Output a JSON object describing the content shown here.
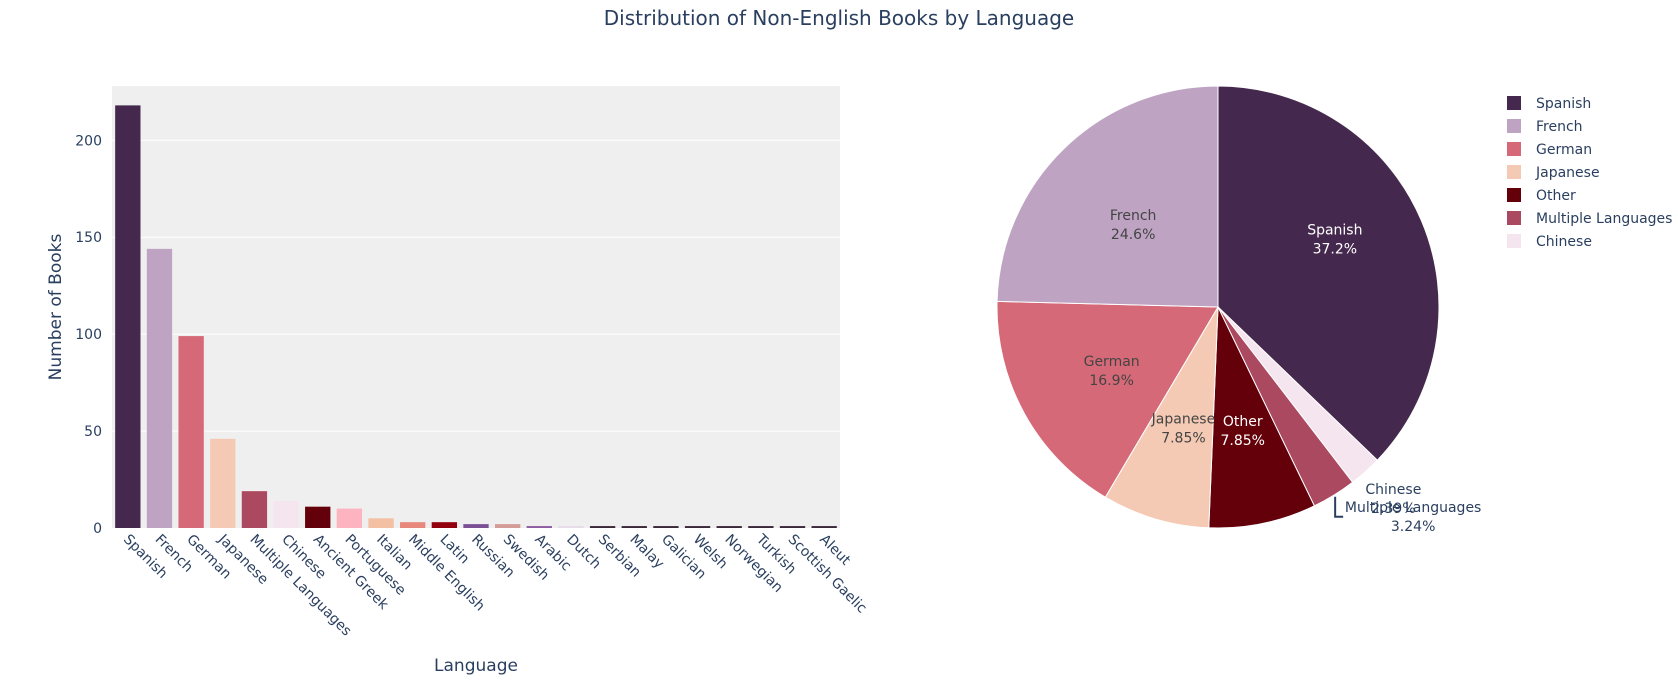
{
  "title": "Distribution of Non-English Books by Language",
  "chart_data": [
    {
      "type": "bar",
      "xlabel": "Language",
      "ylabel": "Number of Books",
      "ylim": [
        0,
        228
      ],
      "yticks": [
        0,
        50,
        100,
        150,
        200
      ],
      "grid": true,
      "categories": [
        "Spanish",
        "French",
        "German",
        "Japanese",
        "Multiple Languages",
        "Chinese",
        "Ancient Greek",
        "Portuguese",
        "Italian",
        "Middle English",
        "Latin",
        "Russian",
        "Swedish",
        "Arabic",
        "Dutch",
        "Serbian",
        "Malay",
        "Galician",
        "Welsh",
        "Norwegian",
        "Turkish",
        "Scottish Gaelic",
        "Aleut"
      ],
      "values": [
        218,
        144,
        99,
        46,
        19,
        14,
        11,
        10,
        5,
        3,
        3,
        2,
        2,
        1,
        1,
        1,
        1,
        1,
        1,
        1,
        1,
        1,
        1
      ],
      "colors": [
        "#45284d",
        "#bea3c3",
        "#d56978",
        "#f5cab4",
        "#aa495f",
        "#f5e5ef",
        "#640009",
        "#fdb4c0",
        "#f4c0a4",
        "#e8877c",
        "#92000e",
        "#7b5095",
        "#d49c97",
        "#8e5ca1",
        "#e8dbe8",
        "#3a2a3a",
        "#3a2a3a",
        "#3a2a3a",
        "#3a2a3a",
        "#3a2a3a",
        "#3a2a3a",
        "#3a2a3a",
        "#3a2a3a"
      ]
    },
    {
      "type": "pie",
      "legend_position": "top-right",
      "slices": [
        {
          "label": "Spanish",
          "percent": 37.2,
          "percent_label": "37.2%",
          "color": "#45284d",
          "text_color": "#ffffff"
        },
        {
          "label": "Chinese",
          "percent": 2.39,
          "percent_label": "2.39%",
          "color": "#f5e5ef",
          "text_color": "#2a3f5f"
        },
        {
          "label": "Multiple Languages",
          "percent": 3.24,
          "percent_label": "3.24%",
          "color": "#aa495f",
          "text_color": "#2a3f5f"
        },
        {
          "label": "Other",
          "percent": 7.85,
          "percent_label": "7.85%",
          "color": "#640009",
          "text_color": "#ffffff"
        },
        {
          "label": "Japanese",
          "percent": 7.85,
          "percent_label": "7.85%",
          "color": "#f5cab4",
          "text_color": "#444444"
        },
        {
          "label": "German",
          "percent": 16.9,
          "percent_label": "16.9%",
          "color": "#d56978",
          "text_color": "#444444"
        },
        {
          "label": "French",
          "percent": 24.6,
          "percent_label": "24.6%",
          "color": "#bea3c3",
          "text_color": "#444444"
        }
      ],
      "legend": [
        {
          "label": "Spanish",
          "color": "#45284d"
        },
        {
          "label": "French",
          "color": "#bea3c3"
        },
        {
          "label": "German",
          "color": "#d56978"
        },
        {
          "label": "Japanese",
          "color": "#f5cab4"
        },
        {
          "label": "Other",
          "color": "#640009"
        },
        {
          "label": "Multiple Languages",
          "color": "#aa495f"
        },
        {
          "label": "Chinese",
          "color": "#f5e5ef"
        }
      ]
    }
  ]
}
